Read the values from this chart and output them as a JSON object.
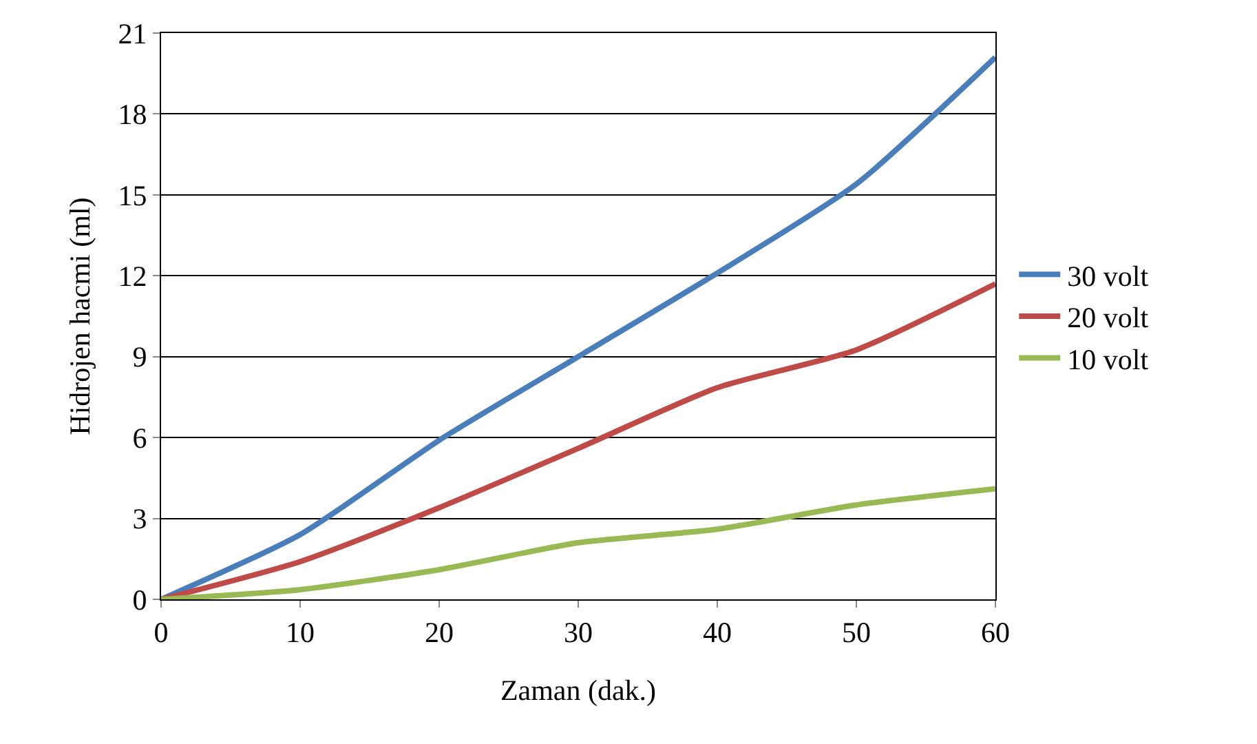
{
  "chart_data": {
    "type": "line",
    "xlabel": "Zaman (dak.)",
    "ylabel": "Hidrojen hacmi (ml)",
    "x": [
      0,
      10,
      20,
      30,
      40,
      50,
      60
    ],
    "series": [
      {
        "name": "30 volt",
        "color": "#4a7ebb",
        "values": [
          0,
          2.4,
          5.9,
          9.0,
          12.1,
          15.4,
          20.1
        ]
      },
      {
        "name": "20 volt",
        "color": "#be4b48",
        "values": [
          0,
          1.4,
          3.4,
          5.6,
          7.85,
          9.25,
          11.7
        ]
      },
      {
        "name": "10 volt",
        "color": "#98b954",
        "values": [
          0,
          0.36,
          1.1,
          2.1,
          2.6,
          3.5,
          4.1
        ]
      }
    ],
    "xlim": [
      0,
      60
    ],
    "xticks": [
      0,
      10,
      20,
      30,
      40,
      50,
      60
    ],
    "ylim": [
      0,
      21
    ],
    "yticks": [
      0,
      3,
      6,
      9,
      12,
      15,
      18,
      21
    ],
    "grid": "y",
    "legend": "right",
    "marker": "none",
    "line_style": "solid"
  }
}
